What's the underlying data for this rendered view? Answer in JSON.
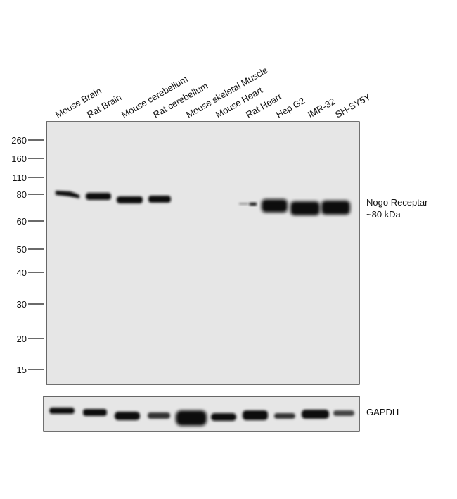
{
  "lanes": [
    "Mouse Brain",
    "Rat Brain",
    "Mouse cerebellum",
    "Rat cerebellum",
    "Mouse skeletal Muscle",
    "Mouse Heart",
    "Rat Heart",
    "Hep G2",
    "IMR-32",
    "SH-SY5Y"
  ],
  "markers": [
    260,
    160,
    110,
    80,
    60,
    50,
    40,
    30,
    20,
    15
  ],
  "annotation": {
    "label": "Nogo Receptar",
    "size": "~80 kDa"
  },
  "loading_control": "GAPDH"
}
